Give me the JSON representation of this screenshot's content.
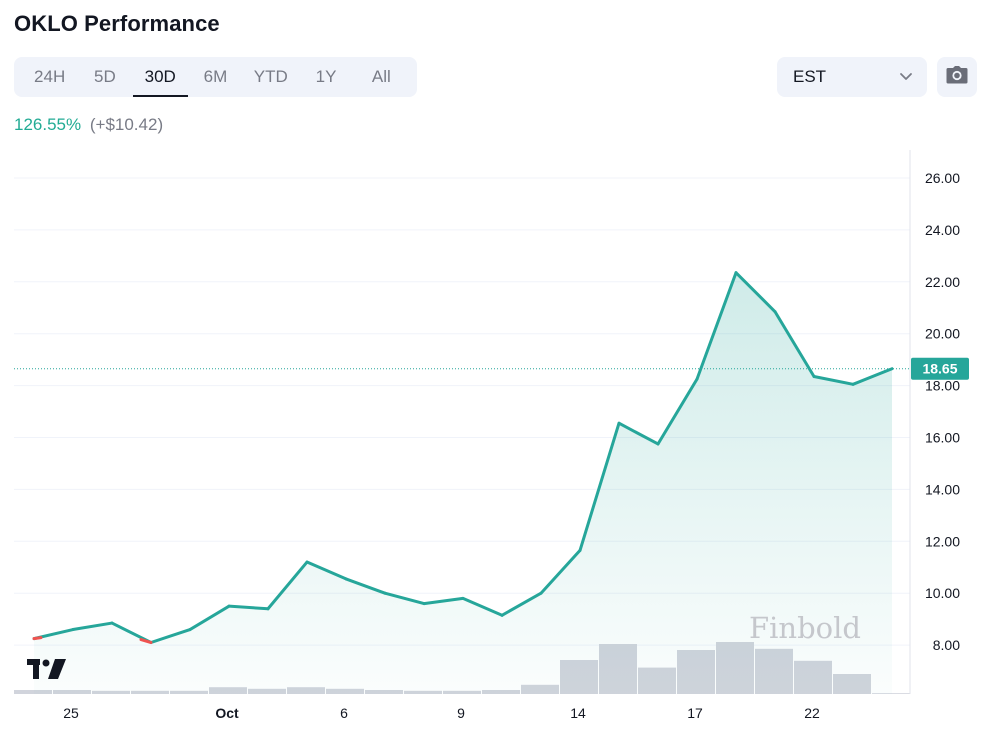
{
  "header": {
    "title": "OKLO Performance"
  },
  "range_tabs": [
    {
      "label": "24H",
      "active": false
    },
    {
      "label": "5D",
      "active": false
    },
    {
      "label": "30D",
      "active": true
    },
    {
      "label": "6M",
      "active": false
    },
    {
      "label": "YTD",
      "active": false
    },
    {
      "label": "1Y",
      "active": false
    },
    {
      "label": "All",
      "active": false
    }
  ],
  "timezone": {
    "selected": "EST",
    "icon": "chevron-down-icon"
  },
  "camera": {
    "icon": "camera-icon"
  },
  "performance": {
    "percent": "126.55%",
    "change": "(+$10.42)"
  },
  "colors": {
    "line": "#26a69a",
    "down_segment": "#ef5350",
    "positive_text": "#22ab94",
    "volume": "#d1d4dc",
    "price_badge": "#26a69a"
  },
  "watermark": "Finbold",
  "logo": {
    "icon": "tradingview-logo-icon",
    "text": "TV"
  },
  "chart_data": {
    "type": "line",
    "current_price": 18.65,
    "current_price_label": "18.65",
    "ylim": [
      6.0,
      26.6
    ],
    "yticks": [
      8,
      10,
      12,
      14,
      16,
      18,
      20,
      22,
      24,
      26
    ],
    "ytick_labels": [
      "8.00",
      "10.00",
      "12.00",
      "14.00",
      "16.00",
      "18.00",
      "20.00",
      "22.00",
      "24.00",
      "26.00"
    ],
    "x_tick_labels": [
      {
        "label": "25",
        "index": 1
      },
      {
        "label": "Oct",
        "index": 5
      },
      {
        "label": "6",
        "index": 8
      },
      {
        "label": "9",
        "index": 11
      },
      {
        "label": "14",
        "index": 14
      },
      {
        "label": "17",
        "index": 17
      },
      {
        "label": "22",
        "index": 20
      }
    ],
    "series": [
      {
        "values": [
          8.25,
          8.6,
          8.85,
          8.1,
          8.6,
          9.5,
          9.4,
          11.2,
          10.55,
          10.0,
          9.6,
          9.8,
          9.15,
          10.0,
          11.65,
          16.55,
          15.75,
          18.25,
          22.35,
          20.85,
          18.35,
          18.05,
          18.65
        ]
      }
    ],
    "volume": [
      1.0,
      1.0,
      0.8,
      0.8,
      0.8,
      1.7,
      1.3,
      1.7,
      1.3,
      1.0,
      0.8,
      0.8,
      1.0,
      2.3,
      8.5,
      12.5,
      6.6,
      11.0,
      13.0,
      11.3,
      8.3,
      5.0,
      0.2
    ]
  }
}
